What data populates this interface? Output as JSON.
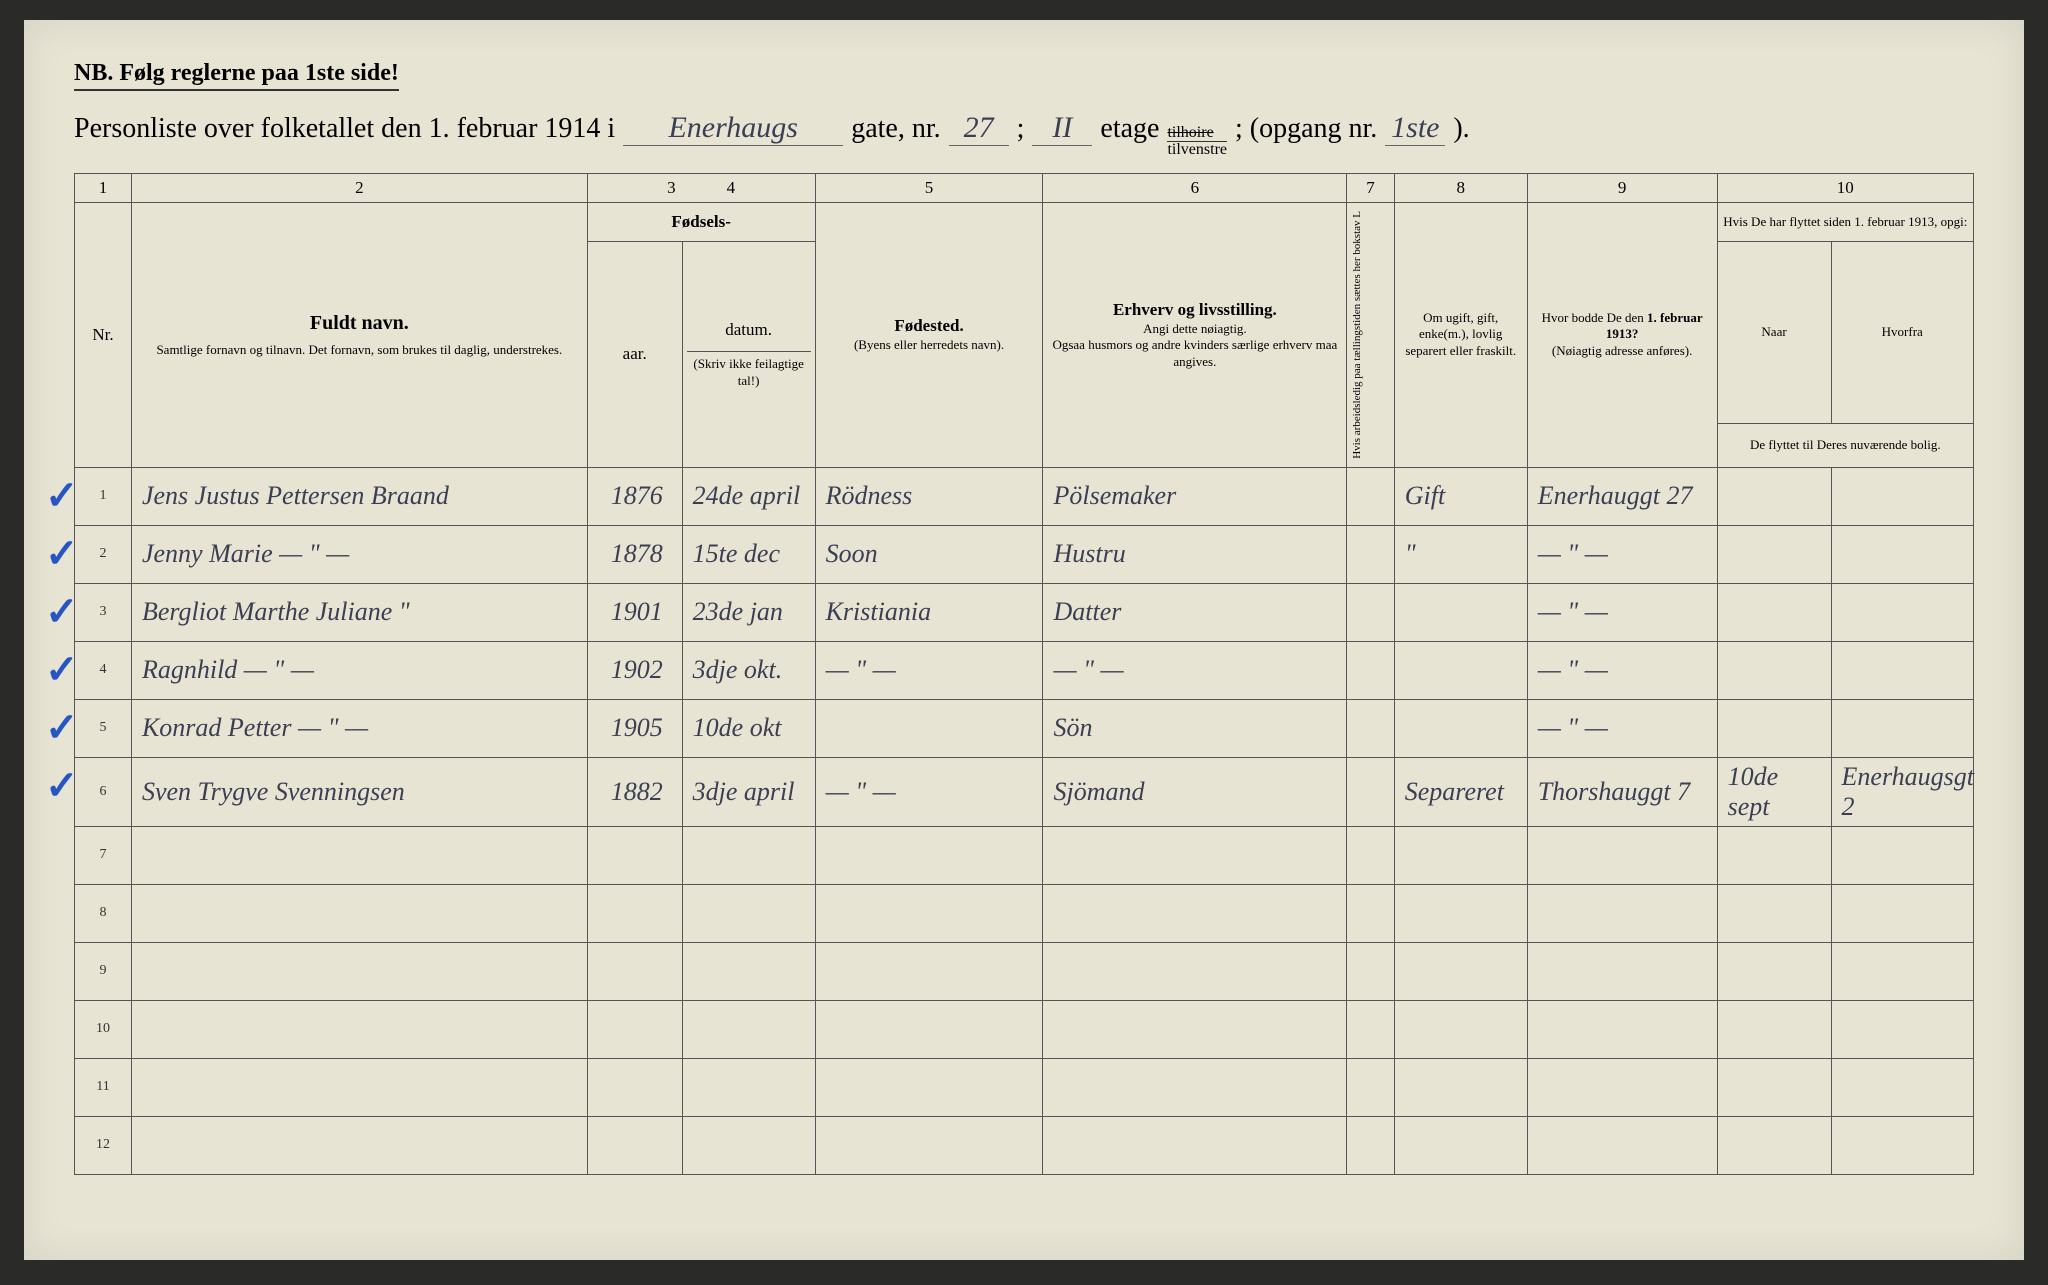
{
  "header": {
    "nb": "NB.  Følg reglerne paa 1ste side!",
    "title_prefix": "Personliste over folketallet den 1. februar 1914 i",
    "street_name": "Enerhaugs",
    "gate_label": "gate, nr.",
    "gate_nr": "27",
    "semicolon": ";",
    "etage_nr": "II",
    "etage_label": "etage",
    "tilhoire": "tilhoire",
    "tilvenstre": "tilvenstre",
    "opgang_label": "; (opgang nr.",
    "opgang_nr": "1ste",
    "closing": ")."
  },
  "col_nums": [
    "1",
    "2",
    "3",
    "4",
    "5",
    "6",
    "7",
    "8",
    "9",
    "10"
  ],
  "columns": {
    "nr": "Nr.",
    "name_title": "Fuldt navn.",
    "name_sub": "Samtlige fornavn og tilnavn.  Det fornavn, som brukes til daglig, understrekes.",
    "birth_title": "Fødsels-",
    "birth_year": "aar.",
    "birth_date": "datum.",
    "birth_note": "(Skriv ikke feilagtige tal!)",
    "birthplace_title": "Fødested.",
    "birthplace_sub": "(Byens eller herredets navn).",
    "occupation_title": "Erhverv og livsstilling.",
    "occupation_sub1": "Angi dette nøiagtig.",
    "occupation_sub2": "Ogsaa husmors og andre kvinders særlige erhverv maa angives.",
    "col7": "Hvis arbeidsledig paa tællingstiden sættes her bokstav L",
    "marital": "Om ugift, gift, enke(m.), lovlig separert eller fraskilt.",
    "prev_addr_title": "Hvor bodde De den 1. februar 1913?",
    "prev_addr_sub": "(Nøiagtig adresse anføres).",
    "moved_title": "Hvis De har flyttet siden 1. februar 1913, opgi:",
    "moved_when": "Naar",
    "moved_from": "Hvorfra",
    "moved_note": "De flyttet til Deres nuværende bolig."
  },
  "rows": [
    {
      "n": "1",
      "check": true,
      "name": "Jens Justus Pettersen Braand",
      "year": "1876",
      "date": "24de april",
      "place": "Rödness",
      "occ": "Pölsemaker",
      "c7": "",
      "mar": "Gift",
      "prev": "Enerhauggt 27",
      "when": "",
      "from": ""
    },
    {
      "n": "2",
      "check": true,
      "name": "Jenny Marie   — \" —",
      "year": "1878",
      "date": "15te dec",
      "place": "Soon",
      "occ": "Hustru",
      "c7": "",
      "mar": "\"",
      "prev": "— \" —",
      "when": "",
      "from": ""
    },
    {
      "n": "3",
      "check": true,
      "name": "Bergliot Marthe Juliane \"",
      "year": "1901",
      "date": "23de jan",
      "place": "Kristiania",
      "occ": "Datter",
      "c7": "",
      "mar": "",
      "prev": "— \" —",
      "when": "",
      "from": ""
    },
    {
      "n": "4",
      "check": true,
      "name": "Ragnhild   — \" —",
      "year": "1902",
      "date": "3dje okt.",
      "place": "— \" —",
      "occ": "— \" —",
      "c7": "",
      "mar": "",
      "prev": "— \" —",
      "when": "",
      "from": ""
    },
    {
      "n": "5",
      "check": true,
      "name": "Konrad Petter   — \" —",
      "year": "1905",
      "date": "10de okt",
      "place": "",
      "occ": "Sön",
      "c7": "",
      "mar": "",
      "prev": "— \" —",
      "when": "",
      "from": ""
    },
    {
      "n": "6",
      "check": true,
      "name": "Sven Trygve Svenningsen",
      "year": "1882",
      "date": "3dje april",
      "place": "— \" —",
      "occ": "Sjömand",
      "c7": "",
      "mar": "Separeret",
      "prev": "Thorshauggt 7",
      "when": "10de sept",
      "from": "Enerhaugsgt 2"
    },
    {
      "n": "7",
      "check": false,
      "name": "",
      "year": "",
      "date": "",
      "place": "",
      "occ": "",
      "c7": "",
      "mar": "",
      "prev": "",
      "when": "",
      "from": ""
    },
    {
      "n": "8",
      "check": false,
      "name": "",
      "year": "",
      "date": "",
      "place": "",
      "occ": "",
      "c7": "",
      "mar": "",
      "prev": "",
      "when": "",
      "from": ""
    },
    {
      "n": "9",
      "check": false,
      "name": "",
      "year": "",
      "date": "",
      "place": "",
      "occ": "",
      "c7": "",
      "mar": "",
      "prev": "",
      "when": "",
      "from": ""
    },
    {
      "n": "10",
      "check": false,
      "name": "",
      "year": "",
      "date": "",
      "place": "",
      "occ": "",
      "c7": "",
      "mar": "",
      "prev": "",
      "when": "",
      "from": ""
    },
    {
      "n": "11",
      "check": false,
      "name": "",
      "year": "",
      "date": "",
      "place": "",
      "occ": "",
      "c7": "",
      "mar": "",
      "prev": "",
      "when": "",
      "from": ""
    },
    {
      "n": "12",
      "check": false,
      "name": "",
      "year": "",
      "date": "",
      "place": "",
      "occ": "",
      "c7": "",
      "mar": "",
      "prev": "",
      "when": "",
      "from": ""
    }
  ],
  "colors": {
    "paper": "#e8e4d4",
    "ink": "#333333",
    "handwriting": "#3a3f52",
    "checkmark": "#2855c4"
  },
  "col_widths_pct": [
    3,
    24,
    5,
    7,
    12,
    16,
    2.5,
    7,
    10,
    6,
    7.5
  ]
}
